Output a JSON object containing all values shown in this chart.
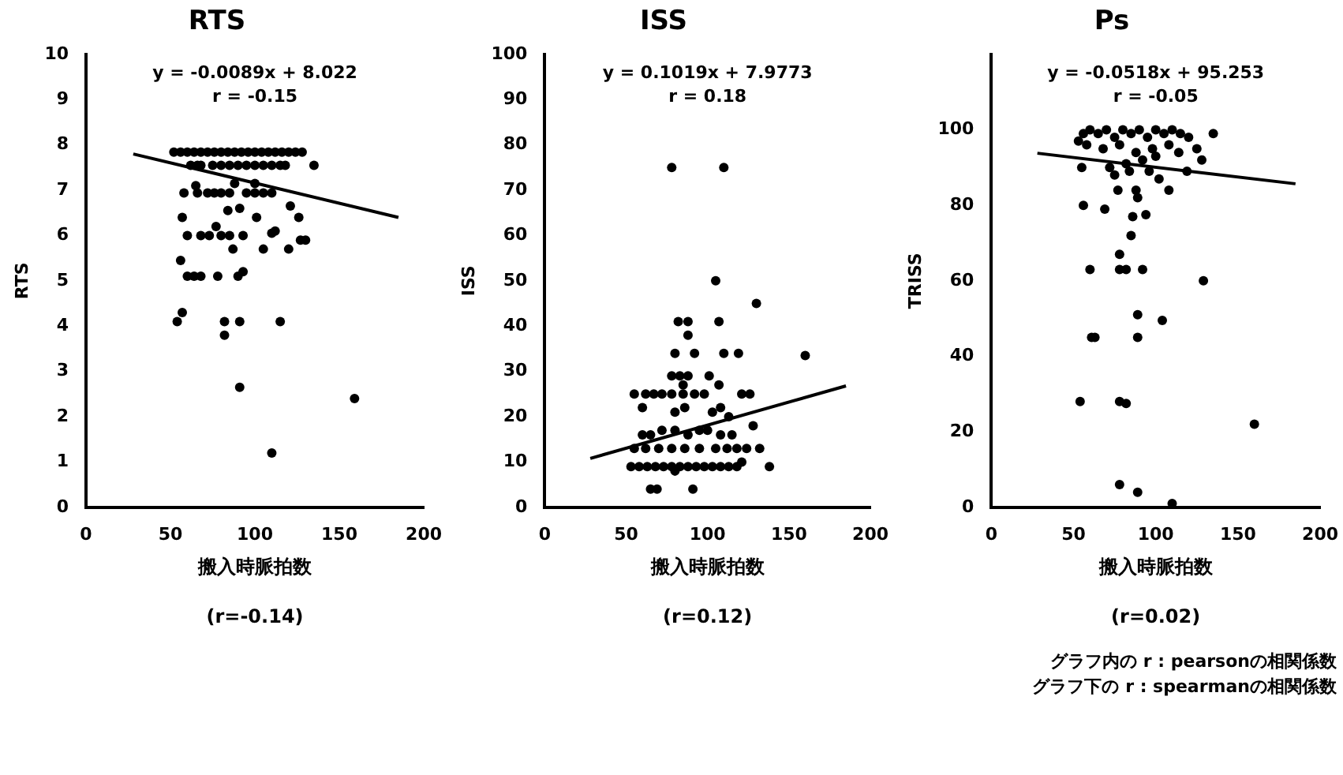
{
  "chart_data": [
    {
      "type": "scatter",
      "title": "RTS",
      "xlabel": "搬入時脈拍数",
      "ylabel": "RTS",
      "xlim": [
        0,
        200
      ],
      "xticks": [
        0,
        50,
        100,
        150,
        200
      ],
      "ylim": [
        0,
        10
      ],
      "yticks": [
        0,
        1,
        2,
        3,
        4,
        5,
        6,
        7,
        8,
        9,
        10
      ],
      "grid": false,
      "legend": false,
      "marker": "circle",
      "annotations": [
        "y = -0.0089x + 8.022",
        "r = -0.15",
        "(r=-0.14)"
      ],
      "series": [
        {
          "type": "scatter",
          "color": "#000000",
          "x": [
            52,
            56,
            60,
            64,
            68,
            72,
            76,
            80,
            84,
            88,
            92,
            96,
            100,
            104,
            108,
            112,
            116,
            120,
            124,
            128,
            62,
            66,
            68,
            75,
            80,
            85,
            90,
            95,
            100,
            105,
            110,
            115,
            118,
            135,
            58,
            66,
            72,
            76,
            80,
            85,
            95,
            100,
            105,
            110,
            65,
            88,
            100,
            57,
            77,
            91,
            84,
            101,
            121,
            126,
            60,
            68,
            73,
            80,
            85,
            93,
            87,
            105,
            110,
            112,
            120,
            127,
            130,
            56,
            60,
            64,
            68,
            78,
            90,
            93,
            54,
            57,
            82,
            82,
            91,
            115,
            91,
            159,
            110
          ],
          "values": [
            7.84,
            7.84,
            7.84,
            7.84,
            7.84,
            7.84,
            7.84,
            7.84,
            7.84,
            7.84,
            7.84,
            7.84,
            7.84,
            7.84,
            7.84,
            7.84,
            7.84,
            7.84,
            7.84,
            7.84,
            7.55,
            7.55,
            7.55,
            7.55,
            7.55,
            7.55,
            7.55,
            7.55,
            7.55,
            7.55,
            7.55,
            7.55,
            7.55,
            7.55,
            6.94,
            6.94,
            6.94,
            6.94,
            6.94,
            6.94,
            6.94,
            6.94,
            6.94,
            6.94,
            7.1,
            7.15,
            7.15,
            6.4,
            6.2,
            6.6,
            6.55,
            6.4,
            6.65,
            6.4,
            6.0,
            6.0,
            6.0,
            6.0,
            6.0,
            6.0,
            5.7,
            5.7,
            6.05,
            6.1,
            5.7,
            5.9,
            5.9,
            5.45,
            5.1,
            5.1,
            5.1,
            5.1,
            5.1,
            5.2,
            4.1,
            4.3,
            4.1,
            3.8,
            4.1,
            4.1,
            2.65,
            2.4,
            1.2
          ]
        },
        {
          "type": "line",
          "color": "#000000",
          "marker": "none",
          "x": [
            28,
            185
          ],
          "values": [
            7.8,
            6.4
          ]
        }
      ]
    },
    {
      "type": "scatter",
      "title": "ISS",
      "xlabel": "搬入時脈拍数",
      "ylabel": "ISS",
      "xlim": [
        0,
        200
      ],
      "xticks": [
        0,
        50,
        100,
        150,
        200
      ],
      "ylim": [
        0,
        100
      ],
      "yticks": [
        0,
        10,
        20,
        30,
        40,
        50,
        60,
        70,
        80,
        90,
        100
      ],
      "grid": false,
      "legend": false,
      "marker": "circle",
      "annotations": [
        "y = 0.1019x + 7.9773",
        "r = 0.18",
        "(r=0.12)"
      ],
      "series": [
        {
          "type": "scatter",
          "color": "#000000",
          "x": [
            78,
            110,
            105,
            130,
            160,
            82,
            88,
            107,
            88,
            80,
            92,
            110,
            119,
            78,
            83,
            88,
            101,
            85,
            107,
            55,
            62,
            67,
            72,
            78,
            85,
            92,
            98,
            121,
            126,
            60,
            80,
            86,
            103,
            108,
            113,
            128,
            60,
            65,
            72,
            80,
            88,
            95,
            100,
            108,
            115,
            55,
            62,
            70,
            78,
            86,
            95,
            105,
            112,
            118,
            124,
            132,
            53,
            58,
            63,
            68,
            73,
            78,
            83,
            88,
            93,
            98,
            103,
            108,
            113,
            118,
            121,
            138,
            80,
            65,
            69,
            91
          ],
          "values": [
            75,
            75,
            50,
            45,
            33.5,
            41,
            41,
            41,
            38,
            34,
            34,
            34,
            34,
            29,
            29,
            29,
            29,
            27,
            27,
            25,
            25,
            25,
            25,
            25,
            25,
            25,
            25,
            25,
            25,
            22,
            21,
            22,
            21,
            22,
            20,
            18,
            16,
            16,
            17,
            17,
            16,
            17,
            17,
            16,
            16,
            13,
            13,
            13,
            13,
            13,
            13,
            13,
            13,
            13,
            13,
            13,
            9,
            9,
            9,
            9,
            9,
            9,
            9,
            9,
            9,
            9,
            9,
            9,
            9,
            9,
            10,
            9,
            8,
            4,
            4,
            4
          ]
        },
        {
          "type": "line",
          "color": "#000000",
          "marker": "none",
          "x": [
            28,
            185
          ],
          "values": [
            10.8,
            26.8
          ]
        }
      ]
    },
    {
      "type": "scatter",
      "title": "Ps",
      "xlabel": "搬入時脈拍数",
      "ylabel": "TRISS",
      "xlim": [
        0,
        200
      ],
      "xticks": [
        0,
        50,
        100,
        150,
        200
      ],
      "ylim": [
        0,
        120
      ],
      "yticks": [
        0,
        20,
        40,
        60,
        80,
        100
      ],
      "grid": false,
      "legend": false,
      "marker": "circle",
      "annotations": [
        "y = -0.0518x + 95.253",
        "r = -0.05",
        "(r=0.02)",
        "グラフ内の r : pearsonの相関係数",
        "グラフ下の r : spearmanの相関係数"
      ],
      "series": [
        {
          "type": "scatter",
          "color": "#000000",
          "x": [
            53,
            56,
            60,
            65,
            70,
            75,
            80,
            85,
            90,
            95,
            100,
            105,
            110,
            115,
            120,
            135,
            58,
            68,
            78,
            88,
            98,
            108,
            114,
            125,
            128,
            55,
            72,
            82,
            92,
            100,
            75,
            84,
            96,
            119,
            102,
            77,
            88,
            108,
            89,
            56,
            69,
            86,
            94,
            85,
            78,
            60,
            78,
            82,
            92,
            129,
            89,
            104,
            61,
            63,
            89,
            54,
            78,
            82,
            160,
            78,
            89,
            110
          ],
          "values": [
            97,
            99,
            100,
            99,
            100,
            98,
            100,
            99,
            100,
            98,
            100,
            99,
            100,
            99,
            98,
            99,
            96,
            95,
            96,
            94,
            95,
            96,
            94,
            95,
            92,
            90,
            90,
            91,
            92,
            93,
            88,
            89,
            89,
            89,
            87,
            84,
            84,
            84,
            82,
            80,
            79,
            77,
            77.5,
            72,
            67,
            63,
            63,
            63,
            63,
            60,
            51,
            49.5,
            45,
            45,
            45,
            28,
            28,
            27.5,
            22,
            6,
            4,
            1
          ]
        },
        {
          "type": "line",
          "color": "#000000",
          "marker": "none",
          "x": [
            28,
            185
          ],
          "values": [
            93.8,
            85.7
          ]
        }
      ]
    }
  ]
}
